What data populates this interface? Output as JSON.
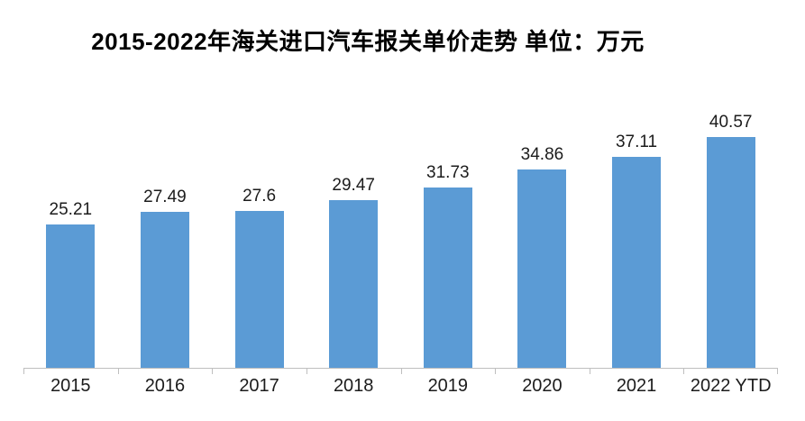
{
  "chart_data": {
    "type": "bar",
    "title": "2015-2022年海关进口汽车报关单价走势 单位：万元",
    "unit": "万元",
    "categories": [
      "2015",
      "2016",
      "2017",
      "2018",
      "2019",
      "2020",
      "2021",
      "2022 YTD"
    ],
    "values": [
      25.21,
      27.49,
      27.6,
      29.47,
      31.73,
      34.86,
      37.11,
      40.57
    ],
    "value_labels": [
      "25.21",
      "27.49",
      "27.6",
      "29.47",
      "31.73",
      "34.86",
      "37.11",
      "40.57"
    ],
    "xlabel": "",
    "ylabel": "",
    "ylim": [
      0,
      41.5
    ],
    "grid": false,
    "legend_position": "none",
    "colors": {
      "bar": "#5B9BD5",
      "axis_line": "#BFBFBF",
      "label_text": "#1C1C1C",
      "title_text": "#000000",
      "background": "#FFFFFF"
    }
  }
}
